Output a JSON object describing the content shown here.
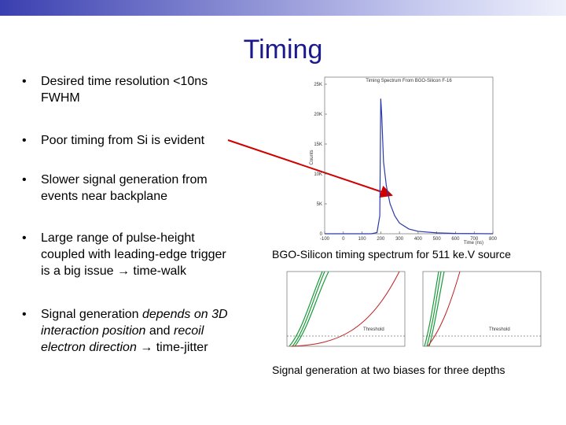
{
  "title": "Timing",
  "bullets": [
    {
      "lines": [
        [
          {
            "text": "Desired time resolution <10ns"
          }
        ],
        [
          {
            "text": "FWHM"
          }
        ]
      ]
    },
    {
      "lines": [
        [
          {
            "text": "Poor timing from Si is evident"
          }
        ]
      ]
    },
    {
      "lines": [
        [
          {
            "text": "Slower signal generation from"
          }
        ],
        [
          {
            "text": "events near backplane"
          }
        ]
      ]
    },
    {
      "lines": [
        [
          {
            "text": "Large range of pulse-height"
          }
        ],
        [
          {
            "text": "coupled with leading-edge trigger"
          }
        ],
        [
          {
            "text": "is a big issue → time-walk"
          }
        ]
      ]
    },
    {
      "lines": [
        [
          {
            "text": "Signal generation "
          },
          {
            "text": "depends on 3D",
            "italic": true
          }
        ],
        [
          {
            "text": "interaction position",
            "italic": true
          },
          {
            "text": " and "
          },
          {
            "text": "recoil",
            "italic": true
          }
        ],
        [
          {
            "text": "electron direction",
            "italic": true
          },
          {
            "text": " → time-jitter"
          }
        ]
      ]
    }
  ],
  "chart_data": {
    "type": "line",
    "title": "Timing Spectrum From BGO-Silicon F-16",
    "x_label": "Time (ns)",
    "y_label": "Counts",
    "x": [
      -100,
      150,
      180,
      195,
      200,
      205,
      215,
      230,
      250,
      275,
      300,
      350,
      400,
      500,
      600,
      800
    ],
    "series": [
      {
        "name": "Counts",
        "color": "#2b3aa8",
        "values": [
          0,
          0,
          200,
          3000,
          22600,
          20000,
          12000,
          8000,
          5000,
          3000,
          1800,
          800,
          400,
          150,
          50,
          0
        ]
      }
    ],
    "xlim": [
      -100,
      800
    ],
    "xticks": [
      -100,
      0,
      100,
      200,
      300,
      400,
      500,
      600,
      700,
      800
    ],
    "ylim": [
      0,
      25000
    ],
    "yticks": [
      0,
      {
        "value": 5000,
        "label": "5K"
      },
      {
        "value": 10000,
        "label": "10K"
      },
      {
        "value": 15000,
        "label": "15K"
      },
      {
        "value": 20000,
        "label": "20K"
      },
      {
        "value": 25000,
        "label": "25K"
      }
    ]
  },
  "captions": [
    "BGO-Silicon timing spectrum for 511 ke.V source",
    "Signal generation at two biases for three depths"
  ],
  "small_plots": [
    {
      "threshold_label": "Threshold"
    },
    {
      "threshold_label": "Threshold"
    }
  ]
}
